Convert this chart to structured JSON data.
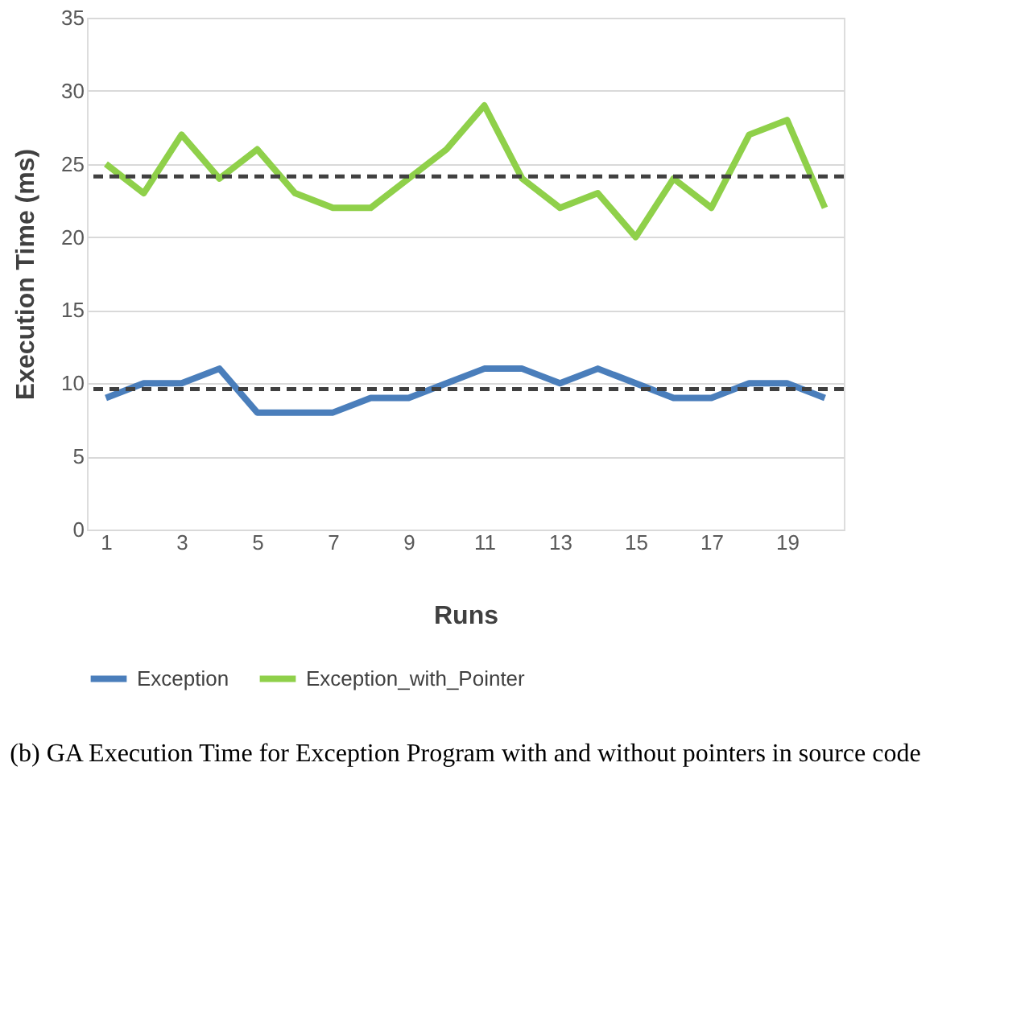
{
  "chart_data": {
    "type": "line",
    "xlabel": "Runs",
    "ylabel": "Execution Time (ms)",
    "x": [
      1,
      2,
      3,
      4,
      5,
      6,
      7,
      8,
      9,
      10,
      11,
      12,
      13,
      14,
      15,
      16,
      17,
      18,
      19,
      20
    ],
    "xlim": [
      0.5,
      20.5
    ],
    "xticks": [
      1,
      3,
      5,
      7,
      9,
      11,
      13,
      15,
      17,
      19
    ],
    "ylim": [
      0,
      35
    ],
    "yticks": [
      0,
      5,
      10,
      15,
      20,
      25,
      30,
      35
    ],
    "series": [
      {
        "name": "Exception",
        "color": "#4a7ebb",
        "values": [
          9,
          10,
          10,
          11,
          8,
          8,
          8,
          9,
          9,
          10,
          11,
          11,
          10,
          11,
          10,
          9,
          9,
          10,
          10,
          9
        ]
      },
      {
        "name": "Exception_with_Pointer",
        "color": "#8fd04a",
        "values": [
          25,
          23,
          27,
          24,
          26,
          23,
          22,
          22,
          24,
          26,
          29,
          24,
          22,
          23,
          20,
          24,
          22,
          27,
          28,
          22
        ]
      }
    ],
    "ref_lines": [
      {
        "axis": "y",
        "value": 9.6,
        "color": "#404040",
        "line_style": "dashed"
      },
      {
        "axis": "y",
        "value": 24.15,
        "color": "#404040",
        "line_style": "dashed"
      }
    ],
    "grid": "y",
    "legend": "bottom",
    "line_style": "solid",
    "marker": "none",
    "annotations": [
      "(b) GA Execution Time for Exception Program with and without pointers in source code"
    ]
  }
}
